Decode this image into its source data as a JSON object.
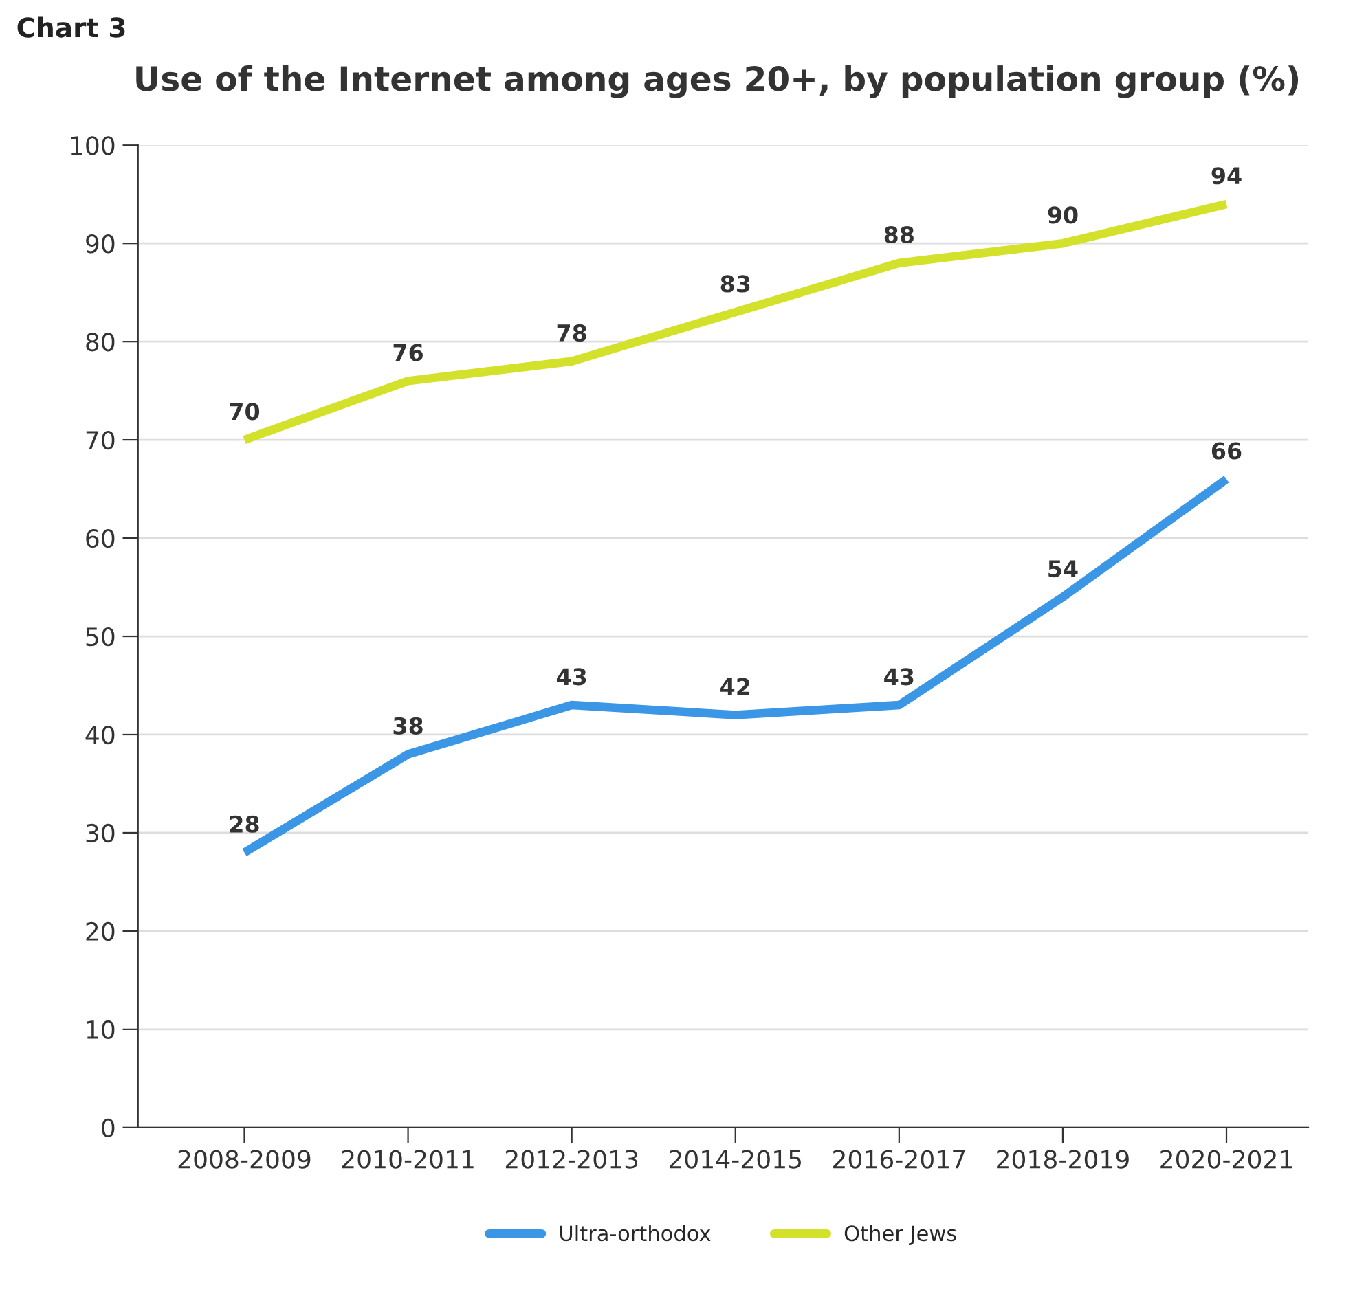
{
  "chart_data": {
    "type": "line",
    "title": "Use of the Internet among ages 20+, by population group (%)",
    "annotations": [
      "Chart 3"
    ],
    "categories": [
      "2008-2009",
      "2010-2011",
      "2012-2013",
      "2014-2015",
      "2016-2017",
      "2018-2019",
      "2020-2021"
    ],
    "series": [
      {
        "name": "Ultra-orthodox",
        "color": "#3b97e6",
        "values": [
          28,
          38,
          43,
          42,
          43,
          54,
          66
        ]
      },
      {
        "name": "Other Jews",
        "color": "#d4e12b",
        "values": [
          70,
          76,
          78,
          83,
          88,
          90,
          94
        ]
      }
    ],
    "ylim": [
      0,
      100
    ],
    "yticks": [
      0,
      10,
      20,
      30,
      40,
      50,
      60,
      70,
      80,
      90,
      100
    ],
    "grid": "y",
    "legend": "bottom",
    "data_labels": true,
    "marker": "none",
    "line_style": "solid"
  }
}
